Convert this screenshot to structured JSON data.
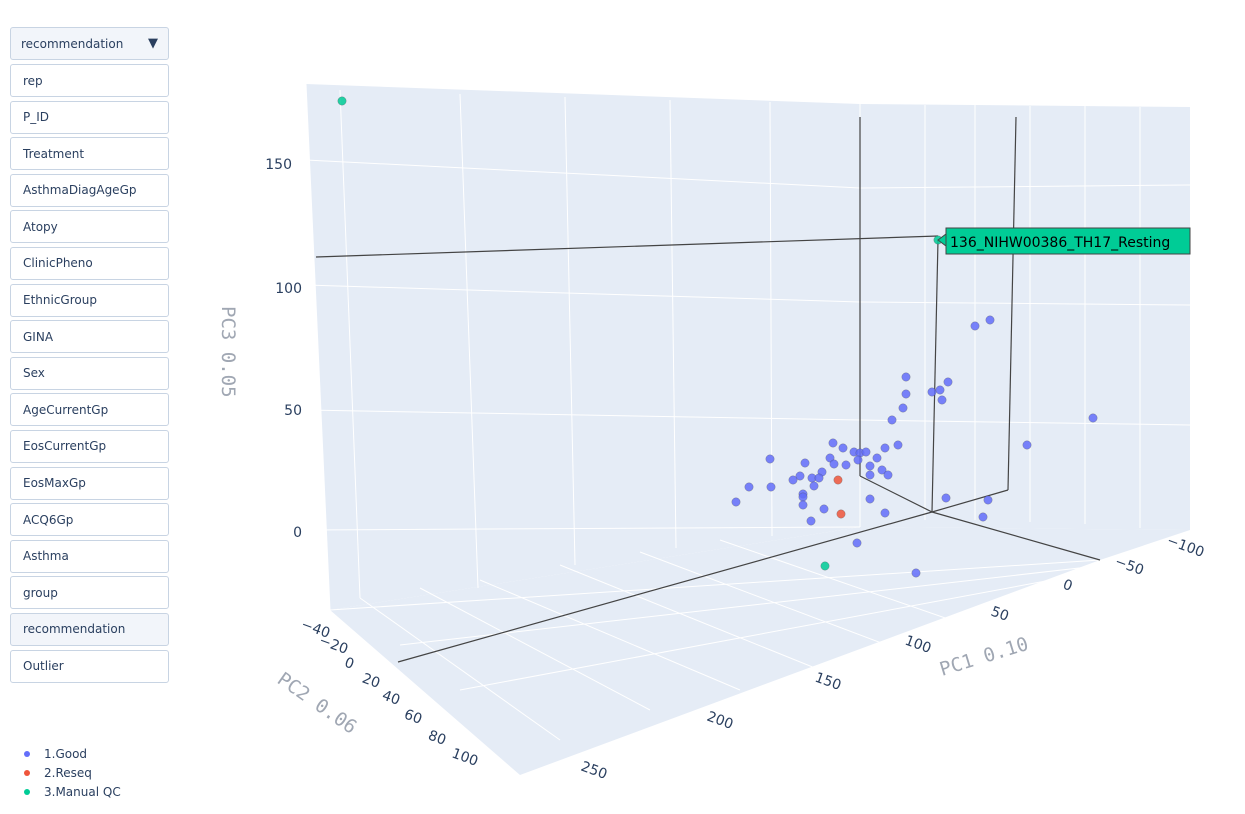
{
  "sidebar": {
    "dropdown": {
      "selected": "recommendation"
    },
    "buttons": [
      {
        "label": "rep"
      },
      {
        "label": "P_ID"
      },
      {
        "label": "Treatment"
      },
      {
        "label": "AsthmaDiagAgeGp"
      },
      {
        "label": "Atopy"
      },
      {
        "label": "ClinicPheno"
      },
      {
        "label": "EthnicGroup"
      },
      {
        "label": "GINA"
      },
      {
        "label": "Sex"
      },
      {
        "label": "AgeCurrentGp"
      },
      {
        "label": "EosCurrentGp"
      },
      {
        "label": "EosMaxGp"
      },
      {
        "label": "ACQ6Gp"
      },
      {
        "label": "Asthma"
      },
      {
        "label": "group"
      },
      {
        "label": "recommendation",
        "active": true
      },
      {
        "label": "Outlier"
      }
    ]
  },
  "colors": {
    "good": "#636efa",
    "reseq": "#ef553b",
    "manual_qc": "#00cc96"
  },
  "chart_data": {
    "type": "scatter",
    "axes": {
      "x": {
        "title": "PC1  0.10",
        "ticks": [
          "−100",
          "−50",
          "0",
          "50",
          "100",
          "150",
          "200",
          "250"
        ]
      },
      "y": {
        "title": "PC2  0.06",
        "ticks": [
          "−40",
          "−20",
          "0",
          "20",
          "40",
          "60",
          "80",
          "100"
        ]
      },
      "z": {
        "title": "PC3  0.05",
        "ticks": [
          "0",
          "50",
          "100",
          "150"
        ]
      }
    },
    "legend": {
      "position": "bottom-left",
      "entries": [
        "1.Good",
        "2.Reseq",
        "3.Manual QC"
      ]
    },
    "hover": {
      "text": "136_NIHW00386_TH17_Resting"
    },
    "series": [
      {
        "name": "1.Good",
        "color": "#636efa",
        "count": 55
      },
      {
        "name": "2.Reseq",
        "color": "#ef553b",
        "count": 2
      },
      {
        "name": "3.Manual QC",
        "color": "#00cc96",
        "count": 3
      }
    ]
  }
}
